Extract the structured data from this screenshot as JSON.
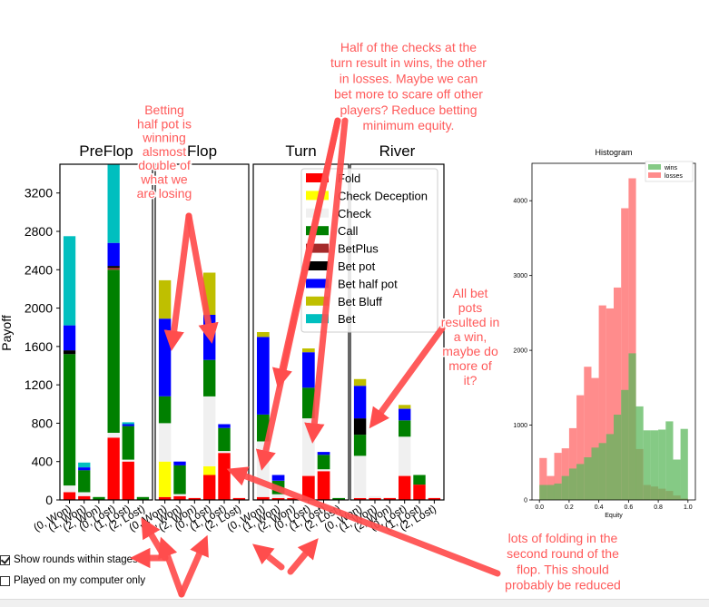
{
  "chart_data": [
    {
      "type": "bar",
      "stacked": true,
      "ylabel": "Payoff",
      "yticks": [
        0,
        400,
        800,
        1200,
        1600,
        2000,
        2400,
        2800,
        3200
      ],
      "ylim": [
        0,
        3500
      ],
      "categories": [
        "(0, Won)",
        "(1, Won)",
        "(2, Won)",
        "(0, Lost)",
        "(1, Lost)",
        "(2, Lost)"
      ],
      "category_colors": {
        "Fold": "#ff0000",
        "Check Deception": "#ffff00",
        "Check": "#f0f0f0",
        "Call": "#008000",
        "BetPlus": "#a52a2a",
        "Bet pot": "#000000",
        "Bet half pot": "#0000ff",
        "Bet Bluff": "#bfbf00",
        "Bet": "#00bfbf"
      },
      "legend": {
        "position": "over-turn-panel",
        "entries": [
          "Fold",
          "Check Deception",
          "Check",
          "Call",
          "BetPlus",
          "Bet pot",
          "Bet half pot",
          "Bet Bluff",
          "Bet"
        ]
      },
      "panels": [
        {
          "title": "PreFlop",
          "bars": [
            [
              [
                "Fold",
                80
              ],
              [
                "Check",
                70
              ],
              [
                "Call",
                1370
              ],
              [
                "Bet pot",
                40
              ],
              [
                "Bet half pot",
                260
              ],
              [
                "Bet",
                930
              ]
            ],
            [
              [
                "Fold",
                40
              ],
              [
                "Check",
                40
              ],
              [
                "Call",
                230
              ],
              [
                "Bet half pot",
                30
              ],
              [
                "Bet",
                50
              ]
            ],
            [
              [
                "Call",
                30
              ]
            ],
            [
              [
                "Fold",
                650
              ],
              [
                "Check",
                50
              ],
              [
                "Call",
                1700
              ],
              [
                "BetPlus",
                20
              ],
              [
                "Bet pot",
                20
              ],
              [
                "Bet half pot",
                240
              ],
              [
                "Bet",
                820
              ]
            ],
            [
              [
                "Fold",
                400
              ],
              [
                "Check",
                20
              ],
              [
                "Call",
                350
              ],
              [
                "Bet half pot",
                20
              ],
              [
                "Bet",
                20
              ]
            ],
            [
              [
                "Call",
                30
              ]
            ]
          ]
        },
        {
          "title": "Flop",
          "bars": [
            [
              [
                "Fold",
                30
              ],
              [
                "Check Deception",
                370
              ],
              [
                "Check",
                400
              ],
              [
                "Call",
                280
              ],
              [
                "Bet half pot",
                810
              ],
              [
                "Bet Bluff",
                400
              ]
            ],
            [
              [
                "Fold",
                40
              ],
              [
                "Check",
                20
              ],
              [
                "Call",
                300
              ],
              [
                "Bet half pot",
                40
              ]
            ],
            [
              [
                "Fold",
                20
              ]
            ],
            [
              [
                "Fold",
                260
              ],
              [
                "Check Deception",
                90
              ],
              [
                "Check",
                730
              ],
              [
                "Call",
                380
              ],
              [
                "Bet half pot",
                470
              ],
              [
                "Bet Bluff",
                440
              ]
            ],
            [
              [
                "Fold",
                490
              ],
              [
                "Check",
                20
              ],
              [
                "Call",
                240
              ],
              [
                "Bet half pot",
                40
              ]
            ],
            [
              [
                "Fold",
                20
              ]
            ]
          ]
        },
        {
          "title": "Turn",
          "bars": [
            [
              [
                "Fold",
                30
              ],
              [
                "Check",
                580
              ],
              [
                "Call",
                280
              ],
              [
                "Bet half pot",
                810
              ],
              [
                "Bet Bluff",
                50
              ]
            ],
            [
              [
                "Fold",
                20
              ],
              [
                "Check",
                40
              ],
              [
                "Call",
                140
              ],
              [
                "Bet half pot",
                60
              ]
            ],
            [
              [
                "Fold",
                20
              ]
            ],
            [
              [
                "Fold",
                250
              ],
              [
                "Check",
                600
              ],
              [
                "Call",
                320
              ],
              [
                "Bet half pot",
                370
              ],
              [
                "Bet Bluff",
                40
              ]
            ],
            [
              [
                "Fold",
                300
              ],
              [
                "Check",
                20
              ],
              [
                "Call",
                150
              ],
              [
                "Bet half pot",
                30
              ]
            ],
            [
              [
                "Call",
                20
              ]
            ]
          ]
        },
        {
          "title": "River",
          "bars": [
            [
              [
                "Fold",
                20
              ],
              [
                "Check",
                440
              ],
              [
                "Call",
                220
              ],
              [
                "Bet pot",
                170
              ],
              [
                "Bet half pot",
                340
              ],
              [
                "Bet Bluff",
                70
              ]
            ],
            [
              [
                "Fold",
                20
              ],
              [
                "Check",
                20
              ]
            ],
            [
              [
                "Fold",
                20
              ]
            ],
            [
              [
                "Fold",
                250
              ],
              [
                "Check",
                410
              ],
              [
                "Call",
                170
              ],
              [
                "Bet half pot",
                120
              ],
              [
                "Bet Bluff",
                40
              ]
            ],
            [
              [
                "Fold",
                160
              ],
              [
                "Call",
                100
              ]
            ],
            [
              [
                "Fold",
                20
              ]
            ]
          ]
        }
      ]
    },
    {
      "type": "histogram",
      "title": "Histogram",
      "xlabel": "Equity",
      "xlim": [
        -0.05,
        1.05
      ],
      "ylim": [
        0,
        4500
      ],
      "xticks": [
        0.0,
        0.2,
        0.4,
        0.6,
        0.8,
        1.0
      ],
      "yticks": [
        0,
        1000,
        2000,
        3000,
        4000
      ],
      "bin_edges": [
        0.0,
        0.05,
        0.1,
        0.15,
        0.2,
        0.25,
        0.3,
        0.35,
        0.4,
        0.45,
        0.5,
        0.55,
        0.6,
        0.65,
        0.7,
        0.75,
        0.8,
        0.85,
        0.9,
        0.95,
        1.0
      ],
      "legend": {
        "position": "top-right",
        "entries": [
          "wins",
          "losses"
        ]
      },
      "series": [
        {
          "name": "wins",
          "color": "#5cb85c",
          "values": [
            200,
            200,
            220,
            320,
            420,
            480,
            570,
            700,
            760,
            880,
            1140,
            1470,
            1960,
            1250,
            930,
            930,
            940,
            1050,
            540,
            950
          ]
        },
        {
          "name": "losses",
          "color": "#ff6666",
          "values": [
            560,
            320,
            630,
            690,
            960,
            1400,
            1780,
            1630,
            2600,
            2560,
            2840,
            3900,
            4300,
            680,
            200,
            180,
            150,
            120,
            60,
            20
          ]
        }
      ]
    }
  ],
  "controls": {
    "show_rounds_label": "Show rounds within stages",
    "show_rounds_checked": true,
    "played_on_computer_label": "Played on my computer only",
    "played_on_computer_checked": false
  },
  "annotations": [
    {
      "id": "betting-half-pot",
      "lines": [
        "Betting",
        "half pot is",
        "winning",
        "alsmost",
        "double of",
        "what we",
        "are losing"
      ]
    },
    {
      "id": "checks-at-turn",
      "lines": [
        "Half of the checks at the",
        "turn result in wins, the other",
        "in losses. Maybe we can",
        "bet more to scare off other",
        "players? Reduce betting",
        "minimum equity."
      ]
    },
    {
      "id": "all-bet-pots",
      "lines": [
        "All bet",
        "pots",
        "resulted in",
        "a win,",
        "maybe do",
        "more of",
        "it?"
      ]
    },
    {
      "id": "lots-of-folding",
      "lines": [
        "lots of folding in the",
        "second round of the",
        "flop. This should",
        "probably be reduced"
      ]
    }
  ]
}
